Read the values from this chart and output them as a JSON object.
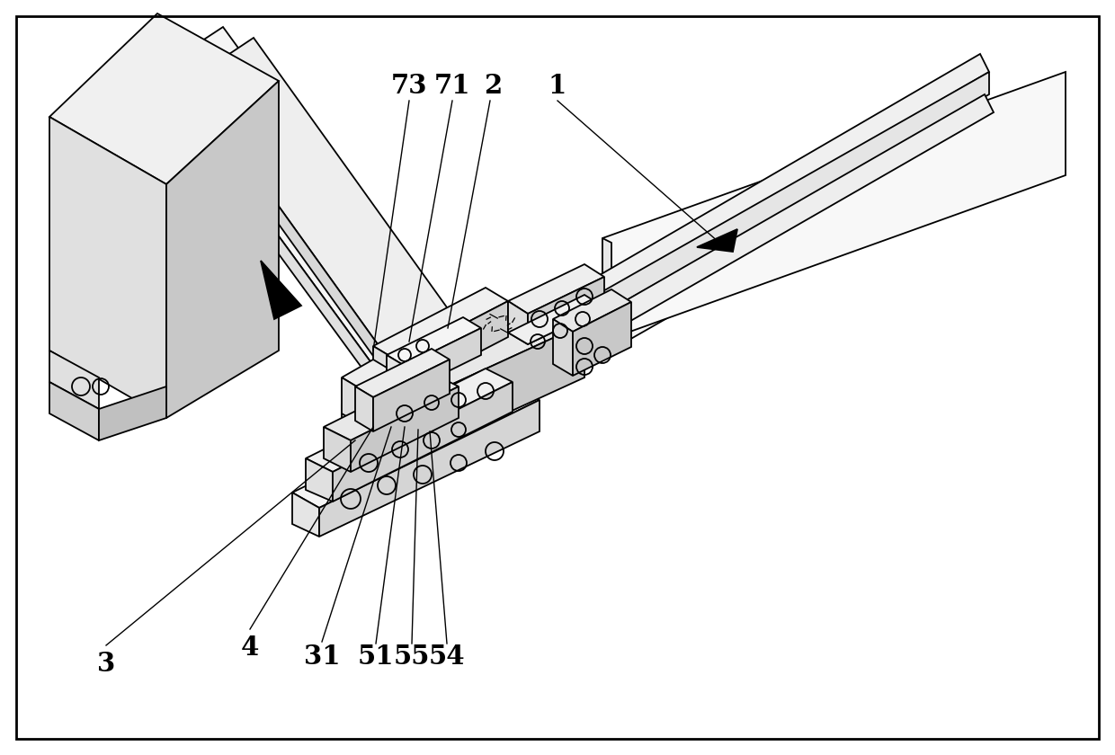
{
  "bg_color": "#ffffff",
  "line_color": "#000000",
  "lw": 1.3,
  "fig_width": 12.4,
  "fig_height": 8.4,
  "dpi": 100
}
